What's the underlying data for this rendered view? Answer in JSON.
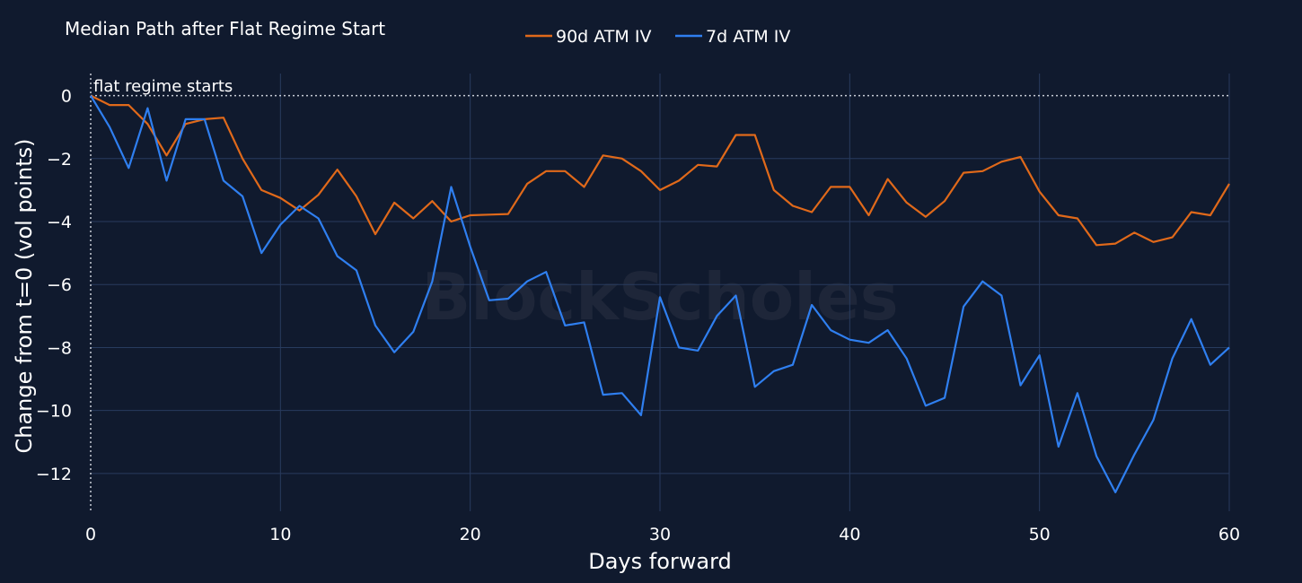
{
  "chart_data": {
    "type": "line",
    "title": "Median Path after Flat Regime Start",
    "xlabel": "Days forward",
    "ylabel": "Change from t=0 (vol points)",
    "xlim": [
      0,
      60
    ],
    "ylim": [
      -13.2,
      0.7
    ],
    "xticks": [
      0,
      10,
      20,
      30,
      40,
      50,
      60
    ],
    "yticks": [
      0,
      -2,
      -4,
      -6,
      -8,
      -10,
      -12
    ],
    "grid": true,
    "legend_position": "top-center",
    "annotation": "flat regime starts",
    "watermark": "BlockScholes",
    "x": [
      0,
      1,
      2,
      3,
      4,
      5,
      6,
      7,
      8,
      9,
      10,
      11,
      12,
      13,
      14,
      15,
      16,
      17,
      18,
      19,
      20,
      21,
      22,
      23,
      24,
      25,
      26,
      27,
      28,
      29,
      30,
      31,
      32,
      33,
      34,
      35,
      36,
      37,
      38,
      39,
      40,
      41,
      42,
      43,
      44,
      45,
      46,
      47,
      48,
      49,
      50,
      51,
      52,
      53,
      54,
      55,
      56,
      57,
      58,
      59,
      60
    ],
    "series": [
      {
        "name": "90d ATM IV",
        "color": "#e0691a",
        "values": [
          0,
          -0.3,
          -0.3,
          -0.9,
          -1.9,
          -0.9,
          -0.75,
          -0.7,
          -2.0,
          -3.0,
          -3.25,
          -3.65,
          -3.15,
          -2.35,
          -3.2,
          -4.4,
          -3.4,
          -3.9,
          -3.35,
          -4.0,
          -3.8,
          -3.78,
          -3.76,
          -2.8,
          -2.4,
          -2.4,
          -2.9,
          -1.9,
          -2.0,
          -2.4,
          -3.0,
          -2.7,
          -2.2,
          -2.25,
          -1.25,
          -1.25,
          -3.0,
          -3.5,
          -3.7,
          -2.9,
          -2.9,
          -3.8,
          -2.65,
          -3.4,
          -3.85,
          -3.35,
          -2.45,
          -2.4,
          -2.1,
          -1.95,
          -3.05,
          -3.8,
          -3.9,
          -4.75,
          -4.7,
          -4.35,
          -4.65,
          -4.5,
          -3.7,
          -3.8,
          -2.8
        ]
      },
      {
        "name": "7d ATM IV",
        "color": "#2f7ff0",
        "values": [
          0,
          -1.0,
          -2.3,
          -0.4,
          -2.7,
          -0.75,
          -0.75,
          -2.7,
          -3.2,
          -5.0,
          -4.1,
          -3.5,
          -3.9,
          -5.1,
          -5.55,
          -7.3,
          -8.15,
          -7.5,
          -5.9,
          -2.9,
          -4.8,
          -6.5,
          -6.45,
          -5.9,
          -5.6,
          -7.3,
          -7.2,
          -9.5,
          -9.45,
          -10.15,
          -6.4,
          -8.0,
          -8.1,
          -7.0,
          -6.35,
          -9.25,
          -8.75,
          -8.55,
          -6.65,
          -7.45,
          -7.75,
          -7.85,
          -7.45,
          -8.35,
          -9.85,
          -9.6,
          -6.7,
          -5.9,
          -6.35,
          -9.2,
          -8.25,
          -11.15,
          -9.45,
          -11.45,
          -12.6,
          -11.4,
          -10.3,
          -8.35,
          -7.1,
          -8.55,
          -8.0
        ]
      }
    ]
  }
}
